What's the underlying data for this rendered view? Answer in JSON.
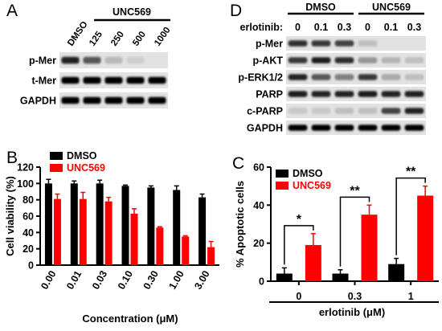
{
  "panels": {
    "A": {
      "letter": "A",
      "group_label": "UNC569",
      "lane_labels": [
        "DMSO",
        "125",
        "250",
        "500",
        "1000"
      ],
      "rows": [
        {
          "label": "p-Mer",
          "intensity": [
            0.85,
            0.6,
            0.12,
            0.02,
            0.0
          ]
        },
        {
          "label": "t-Mer",
          "intensity": [
            1.0,
            1.0,
            1.0,
            1.0,
            1.0
          ]
        },
        {
          "label": "GAPDH",
          "intensity": [
            1.0,
            1.0,
            1.0,
            1.0,
            1.0
          ]
        }
      ]
    },
    "D": {
      "letter": "D",
      "groups": [
        "DMSO",
        "UNC569"
      ],
      "row_header": "erlotinib:",
      "lane_labels": [
        "0",
        "0.1",
        "0.3",
        "0",
        "0.1",
        "0.3"
      ],
      "rows": [
        {
          "label": "p-Mer",
          "intensity": [
            0.8,
            0.75,
            0.7,
            0.1,
            0.0,
            0.0
          ]
        },
        {
          "label": "p-AKT",
          "intensity": [
            0.75,
            0.9,
            0.8,
            0.3,
            0.15,
            0.1
          ]
        },
        {
          "label": "p-ERK1/2",
          "intensity": [
            0.85,
            0.6,
            0.4,
            0.75,
            0.2,
            0.1
          ]
        },
        {
          "label": "PARP",
          "intensity": [
            0.9,
            0.85,
            0.85,
            0.9,
            0.85,
            0.85
          ]
        },
        {
          "label": "c-PARP",
          "intensity": [
            0.05,
            0.05,
            0.1,
            0.1,
            0.7,
            0.85
          ]
        },
        {
          "label": "GAPDH",
          "intensity": [
            1.0,
            1.0,
            1.0,
            1.0,
            1.0,
            1.0
          ]
        }
      ]
    },
    "B": {
      "letter": "B"
    },
    "C": {
      "letter": "C",
      "sig": [
        "*",
        "**",
        "**"
      ]
    }
  },
  "chart_data": [
    {
      "id": "B",
      "type": "bar",
      "xlabel": "Concentration (μM)",
      "ylabel": "Cell viability (%)",
      "ylim": [
        0,
        120
      ],
      "yticks": [
        0,
        20,
        40,
        60,
        80,
        100,
        120
      ],
      "categories": [
        "0.00",
        "0.01",
        "0.03",
        "0.10",
        "0.30",
        "1.00",
        "3.00"
      ],
      "series": [
        {
          "name": "DMSO",
          "color": "#000000",
          "values": [
            100,
            100,
            100,
            97,
            95,
            92,
            83
          ],
          "errors": [
            5,
            3,
            4,
            1,
            2,
            5,
            4
          ]
        },
        {
          "name": "UNC569",
          "color": "#ff0000",
          "values": [
            81,
            81,
            78,
            63,
            46,
            35,
            22
          ],
          "errors": [
            6,
            8,
            5,
            6,
            1,
            1,
            7
          ]
        }
      ],
      "legend": "top-left"
    },
    {
      "id": "C",
      "type": "bar",
      "xlabel": "erlotinib (μM)",
      "ylabel": "% Apoptotic cells",
      "ylim": [
        0,
        60
      ],
      "yticks": [
        0,
        20,
        40,
        60
      ],
      "categories": [
        "0",
        "0.3",
        "1"
      ],
      "series": [
        {
          "name": "DMSO",
          "color": "#000000",
          "values": [
            4,
            4,
            9
          ],
          "errors": [
            3,
            2,
            3
          ]
        },
        {
          "name": "UNC569",
          "color": "#ff0000",
          "values": [
            19,
            35,
            45
          ],
          "errors": [
            6,
            5,
            5
          ]
        }
      ],
      "legend": "top-left"
    }
  ]
}
